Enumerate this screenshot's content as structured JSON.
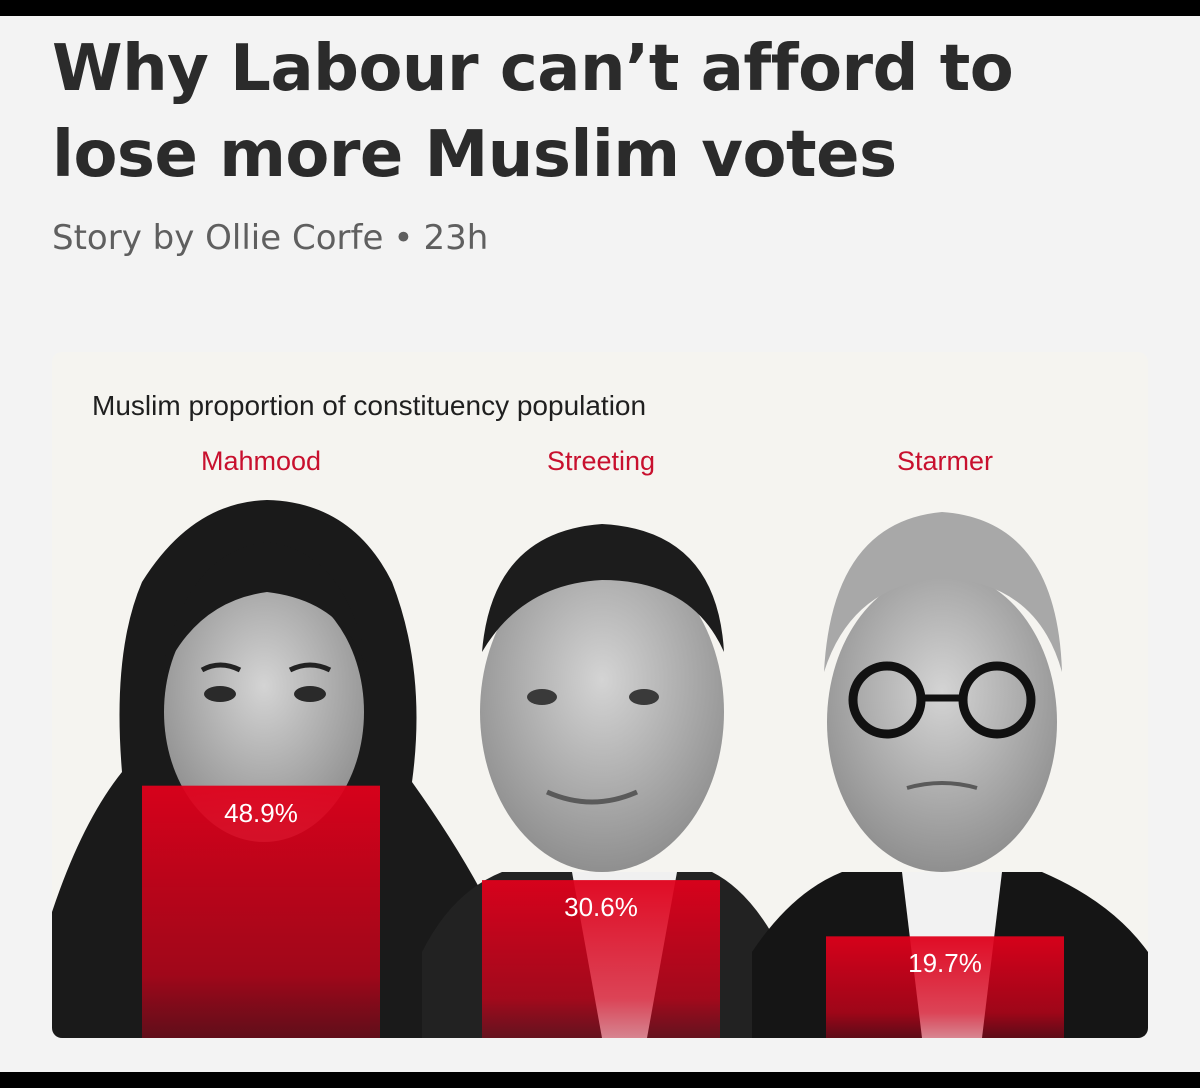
{
  "article": {
    "headline": "Why Labour can’t afford to lose more Muslim votes",
    "byline_prefix": "Story by",
    "author": "Ollie Corfe",
    "separator": "•",
    "time_ago": "23h"
  },
  "colors": {
    "accent_red": "#c8102e",
    "bar_red": "#e0001b",
    "text_dark": "#2b2b2b",
    "text_muted": "#5f5f5f"
  },
  "chart_data": {
    "type": "bar",
    "title": "Muslim proportion of constituency population",
    "categories": [
      "Mahmood",
      "Streeting",
      "Starmer"
    ],
    "values": [
      48.9,
      30.6,
      19.7
    ],
    "value_labels": [
      "48.9%",
      "30.6%",
      "19.7%"
    ],
    "unit": "%",
    "grid": false,
    "legend": "none"
  }
}
